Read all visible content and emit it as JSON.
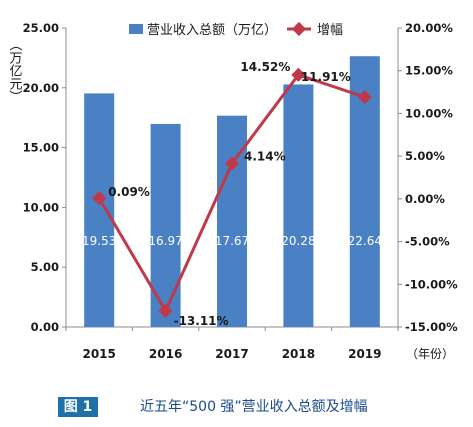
{
  "chart_data": {
    "type": "bar",
    "categories": [
      "2015",
      "2016",
      "2017",
      "2018",
      "2019"
    ],
    "x_unit_label": "（年份）",
    "series": [
      {
        "name": "营业收入总额（万亿）",
        "type": "bar",
        "axis": "left",
        "values": [
          19.53,
          16.97,
          17.67,
          20.28,
          22.64
        ],
        "value_labels": [
          "19.53",
          "16.97",
          "17.67",
          "20.28",
          "22.64"
        ],
        "color": "#4a80c4"
      },
      {
        "name": "增幅",
        "type": "line",
        "axis": "right",
        "values": [
          0.09,
          -13.11,
          4.14,
          14.52,
          11.91
        ],
        "value_labels": [
          "0.09%",
          "-13.11%",
          "4.14%",
          "14.52%",
          "11.91%"
        ],
        "color": "#c0394b"
      }
    ],
    "ylabel_left": "（万亿元）",
    "ylim_left": [
      0,
      25
    ],
    "yticks_left": [
      "0.00",
      "5.00",
      "10.00",
      "15.00",
      "20.00",
      "25.00"
    ],
    "ylim_right": [
      -15,
      20
    ],
    "yticks_right": [
      "-15.00%",
      "-10.00%",
      "-5.00%",
      "0.00%",
      "5.00%",
      "10.00%",
      "15.00%",
      "20.00%"
    ],
    "legend": "top-center",
    "grid": false
  },
  "caption": {
    "badge": "图 1",
    "text": "近五年“500 强”营业收入总额及增幅"
  }
}
